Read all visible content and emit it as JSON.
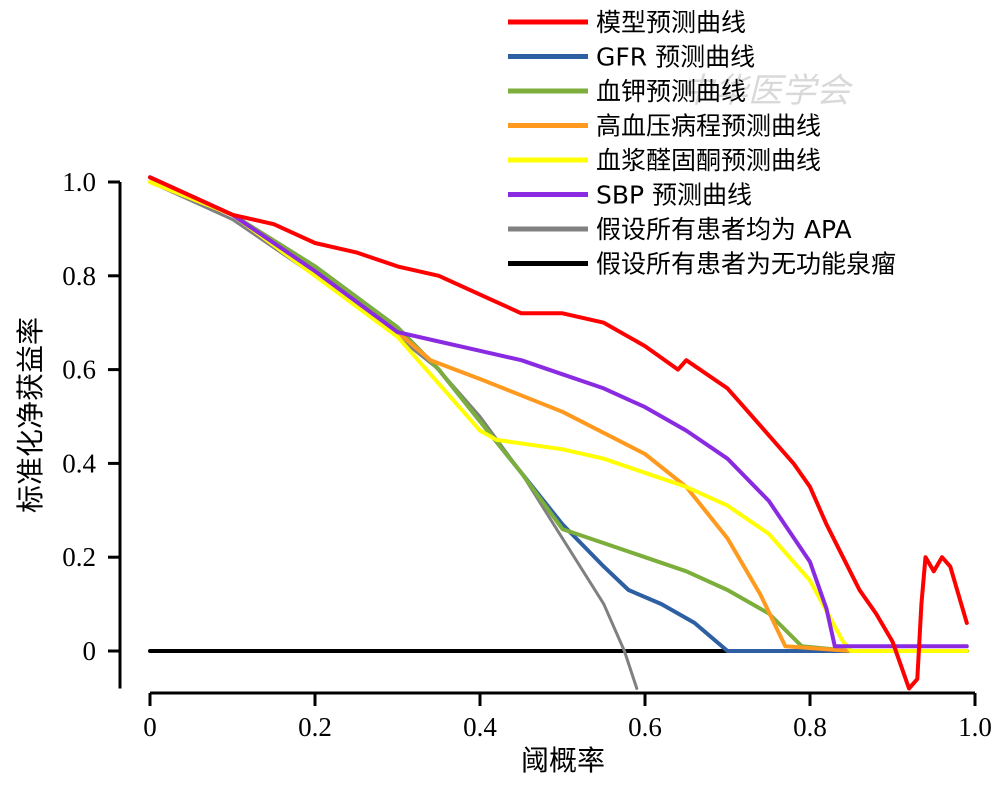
{
  "chart_data": {
    "type": "line",
    "title": "",
    "xlabel": "阈概率",
    "ylabel": "标准化净获益率",
    "xlim": [
      0,
      1.0
    ],
    "ylim": [
      -0.08,
      1.0
    ],
    "x_ticks": [
      "0",
      "0.2",
      "0.4",
      "0.6",
      "0.8",
      "1.0"
    ],
    "y_ticks": [
      "0",
      "0.2",
      "0.4",
      "0.6",
      "0.8",
      "1.0"
    ],
    "legend_position": "top-right",
    "watermark": "中华医学会",
    "series": [
      {
        "name": "模型预测曲线",
        "color": "#ff0000",
        "points": [
          [
            0,
            1.01
          ],
          [
            0.05,
            0.97
          ],
          [
            0.1,
            0.93
          ],
          [
            0.15,
            0.91
          ],
          [
            0.2,
            0.87
          ],
          [
            0.25,
            0.85
          ],
          [
            0.3,
            0.82
          ],
          [
            0.35,
            0.8
          ],
          [
            0.4,
            0.76
          ],
          [
            0.45,
            0.72
          ],
          [
            0.5,
            0.72
          ],
          [
            0.55,
            0.7
          ],
          [
            0.6,
            0.65
          ],
          [
            0.64,
            0.6
          ],
          [
            0.65,
            0.62
          ],
          [
            0.7,
            0.56
          ],
          [
            0.72,
            0.52
          ],
          [
            0.75,
            0.46
          ],
          [
            0.78,
            0.4
          ],
          [
            0.8,
            0.35
          ],
          [
            0.82,
            0.27
          ],
          [
            0.84,
            0.2
          ],
          [
            0.86,
            0.13
          ],
          [
            0.88,
            0.08
          ],
          [
            0.9,
            0.02
          ],
          [
            0.91,
            -0.03
          ],
          [
            0.92,
            -0.08
          ],
          [
            0.93,
            -0.06
          ],
          [
            0.935,
            0.1
          ],
          [
            0.94,
            0.2
          ],
          [
            0.95,
            0.17
          ],
          [
            0.96,
            0.2
          ],
          [
            0.97,
            0.18
          ],
          [
            0.98,
            0.12
          ],
          [
            0.99,
            0.06
          ]
        ]
      },
      {
        "name": "GFR 预测曲线",
        "color": "#2e5fa3",
        "points": [
          [
            0,
            1.01
          ],
          [
            0.1,
            0.93
          ],
          [
            0.2,
            0.82
          ],
          [
            0.3,
            0.69
          ],
          [
            0.35,
            0.6
          ],
          [
            0.4,
            0.49
          ],
          [
            0.45,
            0.38
          ],
          [
            0.5,
            0.27
          ],
          [
            0.55,
            0.18
          ],
          [
            0.58,
            0.13
          ],
          [
            0.62,
            0.1
          ],
          [
            0.66,
            0.06
          ],
          [
            0.7,
            0.0
          ],
          [
            0.8,
            0.0
          ],
          [
            0.9,
            0.0
          ],
          [
            0.99,
            0.0
          ]
        ]
      },
      {
        "name": "血钾预测曲线",
        "color": "#7cae3c",
        "points": [
          [
            0,
            1.01
          ],
          [
            0.1,
            0.93
          ],
          [
            0.2,
            0.82
          ],
          [
            0.3,
            0.69
          ],
          [
            0.35,
            0.6
          ],
          [
            0.4,
            0.49
          ],
          [
            0.45,
            0.38
          ],
          [
            0.5,
            0.26
          ],
          [
            0.55,
            0.23
          ],
          [
            0.6,
            0.2
          ],
          [
            0.65,
            0.17
          ],
          [
            0.7,
            0.13
          ],
          [
            0.75,
            0.08
          ],
          [
            0.79,
            0.01
          ],
          [
            0.85,
            0.0
          ],
          [
            0.99,
            0.0
          ]
        ]
      },
      {
        "name": "高血压病程预测曲线",
        "color": "#ff9a1e",
        "points": [
          [
            0,
            1.0
          ],
          [
            0.1,
            0.93
          ],
          [
            0.2,
            0.81
          ],
          [
            0.3,
            0.68
          ],
          [
            0.34,
            0.62
          ],
          [
            0.4,
            0.58
          ],
          [
            0.5,
            0.51
          ],
          [
            0.6,
            0.42
          ],
          [
            0.65,
            0.35
          ],
          [
            0.7,
            0.24
          ],
          [
            0.74,
            0.12
          ],
          [
            0.77,
            0.01
          ],
          [
            0.85,
            0.0
          ]
        ]
      },
      {
        "name": "血浆醛固酮预测曲线",
        "color": "#ffff00",
        "points": [
          [
            0,
            1.0
          ],
          [
            0.1,
            0.93
          ],
          [
            0.2,
            0.8
          ],
          [
            0.3,
            0.67
          ],
          [
            0.35,
            0.57
          ],
          [
            0.4,
            0.47
          ],
          [
            0.42,
            0.45
          ],
          [
            0.5,
            0.43
          ],
          [
            0.55,
            0.41
          ],
          [
            0.6,
            0.38
          ],
          [
            0.65,
            0.35
          ],
          [
            0.7,
            0.31
          ],
          [
            0.75,
            0.25
          ],
          [
            0.8,
            0.15
          ],
          [
            0.84,
            0.02
          ],
          [
            0.85,
            0.0
          ],
          [
            0.99,
            0.0
          ]
        ]
      },
      {
        "name": "SBP 预测曲线",
        "color": "#8a2be2",
        "points": [
          [
            0,
            1.01
          ],
          [
            0.1,
            0.93
          ],
          [
            0.2,
            0.81
          ],
          [
            0.3,
            0.68
          ],
          [
            0.35,
            0.66
          ],
          [
            0.4,
            0.64
          ],
          [
            0.45,
            0.62
          ],
          [
            0.5,
            0.59
          ],
          [
            0.55,
            0.56
          ],
          [
            0.6,
            0.52
          ],
          [
            0.65,
            0.47
          ],
          [
            0.7,
            0.41
          ],
          [
            0.75,
            0.32
          ],
          [
            0.8,
            0.19
          ],
          [
            0.82,
            0.09
          ],
          [
            0.83,
            0.01
          ],
          [
            0.9,
            0.01
          ],
          [
            0.99,
            0.01
          ]
        ]
      },
      {
        "name": "假设所有患者均为 APA",
        "color": "#808080",
        "points": [
          [
            0,
            1.0
          ],
          [
            0.1,
            0.92
          ],
          [
            0.2,
            0.8
          ],
          [
            0.3,
            0.67
          ],
          [
            0.35,
            0.6
          ],
          [
            0.4,
            0.5
          ],
          [
            0.45,
            0.38
          ],
          [
            0.5,
            0.24
          ],
          [
            0.55,
            0.1
          ],
          [
            0.575,
            0.0
          ],
          [
            0.59,
            -0.08
          ]
        ]
      },
      {
        "name": "假设所有患者为无功能泉瘤",
        "color": "#000000",
        "points": [
          [
            0,
            0.0
          ],
          [
            0.99,
            0.0
          ]
        ]
      }
    ]
  }
}
